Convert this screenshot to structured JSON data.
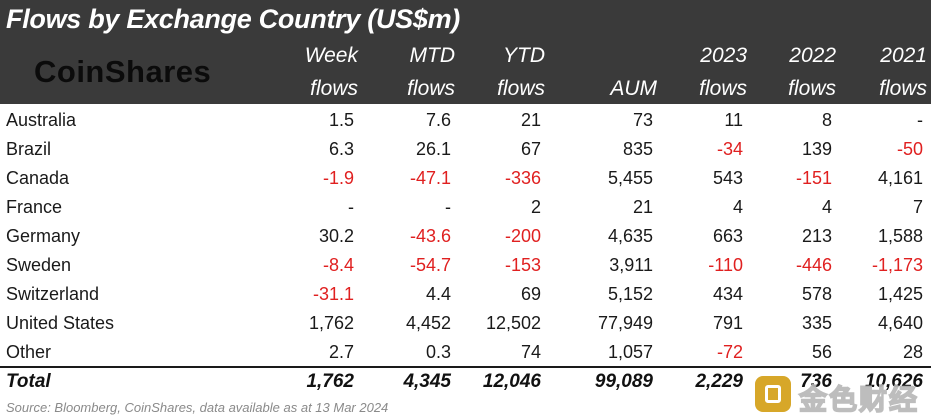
{
  "title": "Flows by Exchange Country (US$m)",
  "logo": "CoinShares",
  "columns": [
    {
      "l1": "Week",
      "l2": "flows"
    },
    {
      "l1": "MTD",
      "l2": "flows"
    },
    {
      "l1": "YTD",
      "l2": "flows"
    },
    {
      "l1": "",
      "l2": "AUM"
    },
    {
      "l1": "2023",
      "l2": "flows"
    },
    {
      "l1": "2022",
      "l2": "flows"
    },
    {
      "l1": "2021",
      "l2": "flows"
    }
  ],
  "rows": [
    {
      "country": "Australia",
      "values": [
        "1.5",
        "7.6",
        "21",
        "73",
        "11",
        "8",
        "-"
      ]
    },
    {
      "country": "Brazil",
      "values": [
        "6.3",
        "26.1",
        "67",
        "835",
        "-34",
        "139",
        "-50"
      ]
    },
    {
      "country": "Canada",
      "values": [
        "-1.9",
        "-47.1",
        "-336",
        "5,455",
        "543",
        "-151",
        "4,161"
      ]
    },
    {
      "country": "France",
      "values": [
        "-",
        "-",
        "2",
        "21",
        "4",
        "4",
        "7"
      ]
    },
    {
      "country": "Germany",
      "values": [
        "30.2",
        "-43.6",
        "-200",
        "4,635",
        "663",
        "213",
        "1,588"
      ]
    },
    {
      "country": "Sweden",
      "values": [
        "-8.4",
        "-54.7",
        "-153",
        "3,911",
        "-110",
        "-446",
        "-1,173"
      ]
    },
    {
      "country": "Switzerland",
      "values": [
        "-31.1",
        "4.4",
        "69",
        "5,152",
        "434",
        "578",
        "1,425"
      ]
    },
    {
      "country": "United States",
      "values": [
        "1,762",
        "4,452",
        "12,502",
        "77,949",
        "791",
        "335",
        "4,640"
      ]
    },
    {
      "country": "Other",
      "values": [
        "2.7",
        "0.3",
        "74",
        "1,057",
        "-72",
        "56",
        "28"
      ]
    }
  ],
  "total": {
    "label": "Total",
    "values": [
      "1,762",
      "4,345",
      "12,046",
      "99,089",
      "2,229",
      "736",
      "10,626"
    ]
  },
  "source": "Source: Bloomberg, CoinShares, data available as at 13 Mar 2024",
  "watermark": "金色财经",
  "colors": {
    "header_bg": "#3a3a3a",
    "negative": "#e02020",
    "watermark_badge": "#d4a017"
  }
}
